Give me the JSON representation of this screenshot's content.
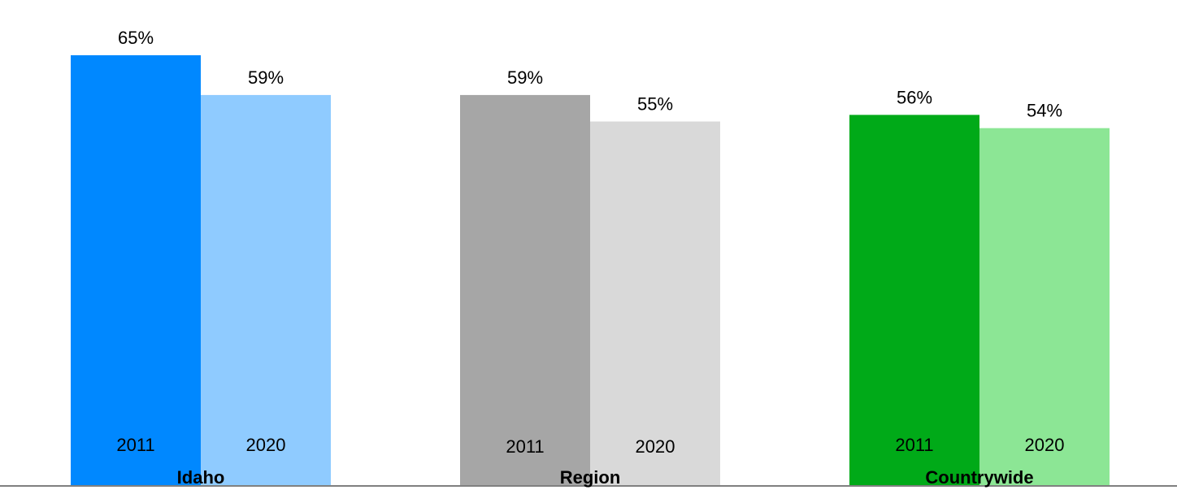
{
  "chart_data": {
    "type": "bar",
    "title": "",
    "xlabel": "",
    "ylabel": "",
    "ylim": [
      0,
      65
    ],
    "unit": "%",
    "groups": [
      {
        "name": "Idaho",
        "bars": [
          {
            "year": "2011",
            "value": 65,
            "label": "65%",
            "color": "#0088FF"
          },
          {
            "year": "2020",
            "value": 59,
            "label": "59%",
            "color": "#8FCBFF"
          }
        ]
      },
      {
        "name": "Region",
        "bars": [
          {
            "year": "2011",
            "value": 59,
            "label": "59%",
            "color": "#A6A6A6"
          },
          {
            "year": "2020",
            "value": 55,
            "label": "55%",
            "color": "#D9D9D9"
          }
        ]
      },
      {
        "name": "Countrywide",
        "bars": [
          {
            "year": "2011",
            "value": 56,
            "label": "56%",
            "color": "#00AA18"
          },
          {
            "year": "2020",
            "value": 54,
            "label": "54%",
            "color": "#8CE695"
          }
        ]
      }
    ],
    "axis_color": "#808080",
    "grid": false,
    "legend": "none"
  }
}
